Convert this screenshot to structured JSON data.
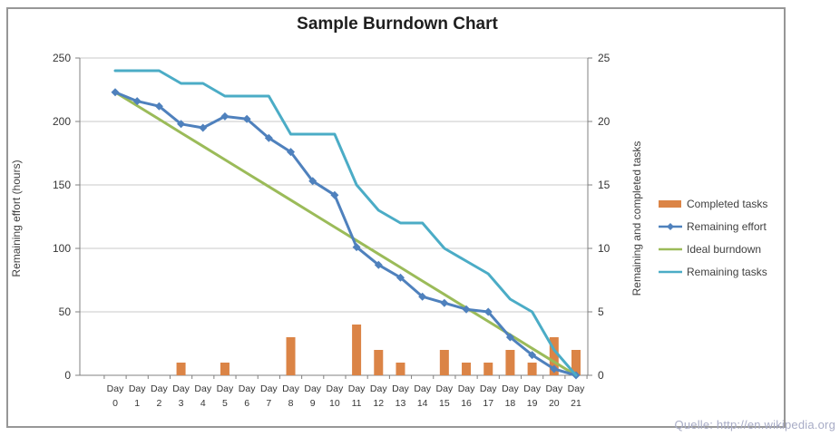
{
  "chart_data": {
    "type": "combo",
    "title": "Sample Burndown Chart",
    "categories": [
      "Day 0",
      "Day 1",
      "Day 2",
      "Day 3",
      "Day 4",
      "Day 5",
      "Day 6",
      "Day 7",
      "Day 8",
      "Day 9",
      "Day 10",
      "Day 11",
      "Day 12",
      "Day 13",
      "Day 14",
      "Day 15",
      "Day 16",
      "Day 17",
      "Day 18",
      "Day 19",
      "Day 20",
      "Day 21"
    ],
    "series": [
      {
        "name": "Completed tasks",
        "type": "bar",
        "axis": "right",
        "color": "#DB8446",
        "values": [
          0,
          0,
          0,
          1,
          0,
          1,
          0,
          0,
          3,
          0,
          0,
          4,
          2,
          1,
          0,
          2,
          1,
          1,
          2,
          1,
          3,
          2
        ]
      },
      {
        "name": "Remaining effort",
        "type": "line",
        "marker": "diamond",
        "axis": "left",
        "color": "#4F81BD",
        "values": [
          223,
          216,
          212,
          198,
          195,
          204,
          202,
          187,
          176,
          153,
          142,
          101,
          87,
          77,
          62,
          57,
          52,
          50,
          30,
          16,
          5,
          0
        ]
      },
      {
        "name": "Ideal burndown",
        "type": "line",
        "axis": "left",
        "color": "#9BBB59",
        "values": [
          223,
          212.4,
          201.8,
          191.1,
          180.5,
          169.9,
          159.3,
          148.7,
          138.1,
          127.4,
          116.8,
          106.2,
          95.6,
          85.0,
          74.3,
          63.7,
          53.1,
          42.5,
          31.9,
          21.2,
          10.6,
          0
        ]
      },
      {
        "name": "Remaining tasks",
        "type": "line",
        "axis": "right",
        "color": "#4BACC6",
        "values": [
          24,
          24,
          24,
          23,
          23,
          22,
          22,
          22,
          19,
          19,
          19,
          15,
          13,
          12,
          12,
          10,
          9,
          8,
          6,
          5,
          2,
          0
        ]
      }
    ],
    "axes": {
      "left": {
        "label": "Remaining effort (hours)",
        "min": 0,
        "max": 250,
        "step": 50,
        "ticks": [
          "250",
          "200",
          "150",
          "100",
          "50",
          "0"
        ]
      },
      "right": {
        "label": "Remaining and completed tasks",
        "min": 0,
        "max": 25,
        "step": 5,
        "ticks": [
          "25",
          "20",
          "15",
          "10",
          "5",
          "0"
        ]
      }
    },
    "grid": true,
    "legend_position": "right"
  },
  "source_caption": "Quelle: http://en.wikipedia.org",
  "colors": {
    "grid_line": "#C8C8C8",
    "axis_line": "#808080",
    "tick_label": "#353535",
    "title_text": "#1F1F1F",
    "axis_title_text": "#3F3F3F",
    "frame_border": "#979797",
    "source_caption_text": "#A8ACC6",
    "background": "#FFFFFF"
  }
}
